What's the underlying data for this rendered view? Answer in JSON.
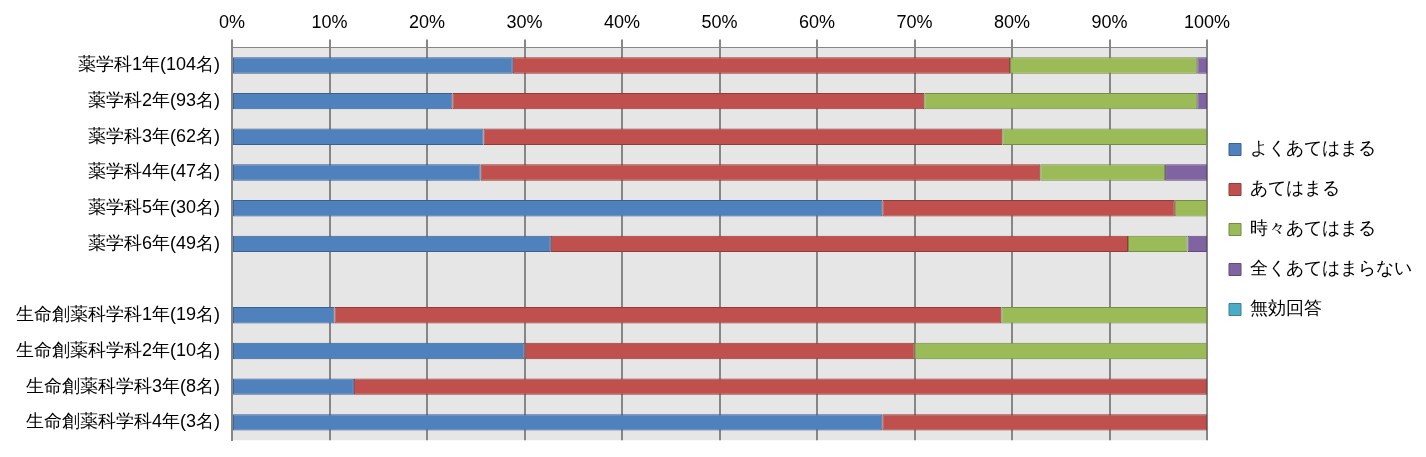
{
  "chart_data": {
    "type": "bar",
    "orientation": "horizontal",
    "stacked": true,
    "categories": [
      "薬学科1年(104名)",
      "薬学科2年(93名)",
      "薬学科3年(62名)",
      "薬学科4年(47名)",
      "薬学科5年(30名)",
      "薬学科6年(49名)",
      null,
      "生命創薬科学科1年(19名)",
      "生命創薬科学科2年(10名)",
      "生命創薬科学科3年(8名)",
      "生命創薬科学科4年(3名)"
    ],
    "series": [
      {
        "name": "よくあてはまる",
        "color": "#4f81bd",
        "values": [
          28.8,
          22.6,
          25.8,
          25.5,
          66.7,
          32.7,
          null,
          10.5,
          30,
          12.5,
          66.7
        ]
      },
      {
        "name": "あてはまる",
        "color": "#c0504d",
        "values": [
          51.0,
          48.4,
          53.2,
          57.4,
          30.0,
          59.2,
          null,
          68.4,
          40,
          87.5,
          33.3
        ]
      },
      {
        "name": "時々あてはまる",
        "color": "#9bbb59",
        "values": [
          19.2,
          28.0,
          21.0,
          12.8,
          3.3,
          6.1,
          null,
          21.1,
          30,
          0,
          0
        ]
      },
      {
        "name": "全くあてはまらない",
        "color": "#8064a2",
        "values": [
          1.0,
          1.0,
          0,
          4.3,
          0,
          2.0,
          null,
          0,
          0,
          0,
          0
        ]
      },
      {
        "name": "無効回答",
        "color": "#4bacc6",
        "values": [
          0,
          0,
          0,
          0,
          0,
          0,
          null,
          0,
          0,
          0,
          0
        ]
      }
    ],
    "xlim": [
      0,
      100
    ],
    "xticks": [
      {
        "value": 0,
        "label": "0%"
      },
      {
        "value": 10,
        "label": "10%"
      },
      {
        "value": 20,
        "label": "20%"
      },
      {
        "value": 30,
        "label": "30%"
      },
      {
        "value": 40,
        "label": "40%"
      },
      {
        "value": 50,
        "label": "50%"
      },
      {
        "value": 60,
        "label": "60%"
      },
      {
        "value": 70,
        "label": "70%"
      },
      {
        "value": 80,
        "label": "80%"
      },
      {
        "value": 90,
        "label": "90%"
      },
      {
        "value": 100,
        "label": "100%"
      }
    ],
    "grid": "x",
    "legend": "right"
  }
}
